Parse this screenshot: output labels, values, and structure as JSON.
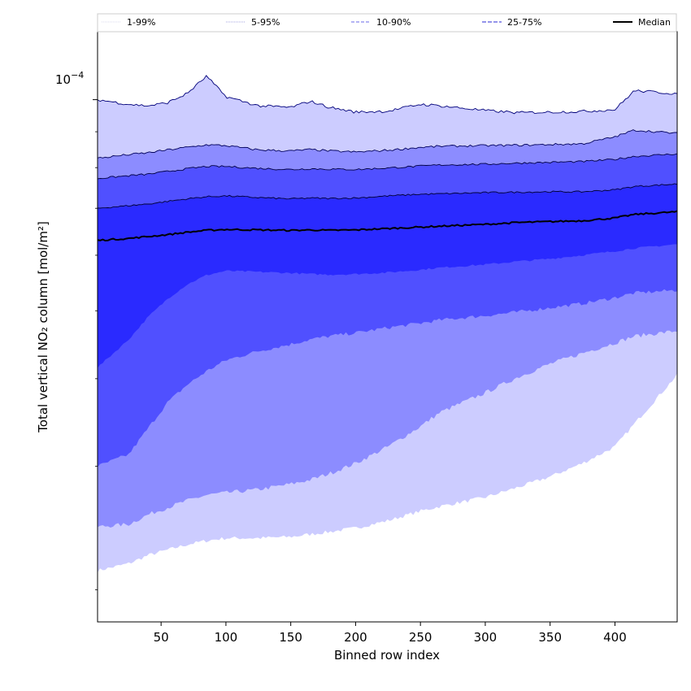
{
  "chart_data": {
    "type": "area",
    "xlabel": "Binned row index",
    "ylabel": "Total vertical NO₂ column [mol/m²]",
    "xlim": [
      1,
      448
    ],
    "y_scale": "log",
    "ylim": [
      1.8e-05,
      0.000125
    ],
    "x_ticks": [
      50,
      100,
      150,
      200,
      250,
      300,
      350,
      400
    ],
    "y_major_tick": {
      "value": 0.0001,
      "label_base": "10",
      "label_exp": "−4"
    },
    "y_minor_ticks": [
      2e-05,
      3e-05,
      4e-05,
      5e-05,
      6e-05,
      7e-05,
      8e-05,
      9e-05
    ],
    "x": [
      1,
      25,
      40,
      55,
      70,
      85,
      100,
      125,
      150,
      165,
      180,
      200,
      225,
      250,
      265,
      300,
      325,
      350,
      375,
      400,
      415,
      448
    ],
    "series": [
      {
        "name": "1%",
        "band": "1-99%",
        "values": [
          2.13e-05,
          2.18e-05,
          2.24e-05,
          2.28e-05,
          2.32e-05,
          2.35e-05,
          2.37e-05,
          2.37e-05,
          2.38e-05,
          2.4e-05,
          2.42e-05,
          2.45e-05,
          2.51e-05,
          2.59e-05,
          2.63e-05,
          2.71e-05,
          2.8e-05,
          2.9e-05,
          3.03e-05,
          3.2e-05,
          3.45e-05,
          4.05e-05
        ]
      },
      {
        "name": "5%",
        "band": "5-95%",
        "values": [
          2.46e-05,
          2.48e-05,
          2.56e-05,
          2.62e-05,
          2.68e-05,
          2.73e-05,
          2.75e-05,
          2.78e-05,
          2.83e-05,
          2.87e-05,
          2.93e-05,
          3.03e-05,
          3.2e-05,
          3.42e-05,
          3.58e-05,
          3.82e-05,
          4.02e-05,
          4.2e-05,
          4.35e-05,
          4.5e-05,
          4.6e-05,
          4.68e-05
        ]
      },
      {
        "name": "10%",
        "band": "10-90%",
        "values": [
          3e-05,
          3.12e-05,
          3.4e-05,
          3.7e-05,
          3.92e-05,
          4.1e-05,
          4.25e-05,
          4.38e-05,
          4.48e-05,
          4.55e-05,
          4.6e-05,
          4.65e-05,
          4.73e-05,
          4.8e-05,
          4.85e-05,
          4.92e-05,
          4.98e-05,
          5.05e-05,
          5.12e-05,
          5.22e-05,
          5.3e-05,
          5.35e-05
        ]
      },
      {
        "name": "25%",
        "band": "25-75%",
        "values": [
          4.15e-05,
          4.55e-05,
          4.9e-05,
          5.2e-05,
          5.45e-05,
          5.62e-05,
          5.7e-05,
          5.68e-05,
          5.66e-05,
          5.64e-05,
          5.63e-05,
          5.64e-05,
          5.67e-05,
          5.72e-05,
          5.76e-05,
          5.82e-05,
          5.88e-05,
          5.93e-05,
          6e-05,
          6.08e-05,
          6.14e-05,
          6.22e-05
        ]
      },
      {
        "name": "Median",
        "band": "Median",
        "values": [
          6.3e-05,
          6.34e-05,
          6.38e-05,
          6.42e-05,
          6.47e-05,
          6.51e-05,
          6.53e-05,
          6.52e-05,
          6.51e-05,
          6.52e-05,
          6.51e-05,
          6.52e-05,
          6.55e-05,
          6.58e-05,
          6.6e-05,
          6.64e-05,
          6.68e-05,
          6.7e-05,
          6.72e-05,
          6.78e-05,
          6.86e-05,
          6.92e-05
        ]
      },
      {
        "name": "75%",
        "band": "25-75%",
        "values": [
          7e-05,
          7.06e-05,
          7.1e-05,
          7.16e-05,
          7.22e-05,
          7.27e-05,
          7.29e-05,
          7.25e-05,
          7.22e-05,
          7.24e-05,
          7.23e-05,
          7.24e-05,
          7.29e-05,
          7.33e-05,
          7.34e-05,
          7.37e-05,
          7.38e-05,
          7.39e-05,
          7.39e-05,
          7.44e-05,
          7.52e-05,
          7.58e-05
        ]
      },
      {
        "name": "90%",
        "band": "10-90%",
        "values": [
          7.72e-05,
          7.79e-05,
          7.83e-05,
          7.9e-05,
          7.97e-05,
          8.03e-05,
          8.03e-05,
          7.98e-05,
          7.95e-05,
          7.97e-05,
          7.96e-05,
          7.95e-05,
          7.99e-05,
          8.04e-05,
          8.07e-05,
          8.09e-05,
          8.12e-05,
          8.14e-05,
          8.16e-05,
          8.22e-05,
          8.3e-05,
          8.37e-05
        ]
      },
      {
        "name": "95%",
        "band": "5-95%",
        "values": [
          8.25e-05,
          8.35e-05,
          8.4e-05,
          8.48e-05,
          8.55e-05,
          8.62e-05,
          8.6e-05,
          8.48e-05,
          8.45e-05,
          8.49e-05,
          8.45e-05,
          8.42e-05,
          8.47e-05,
          8.55e-05,
          8.58e-05,
          8.6e-05,
          8.61e-05,
          8.63e-05,
          8.65e-05,
          8.85e-05,
          9.05e-05,
          8.95e-05
        ]
      },
      {
        "name": "99%",
        "band": "1-99%",
        "values": [
          0.0001,
          9.85e-05,
          9.8e-05,
          9.9e-05,
          0.000102,
          0.000108,
          0.000101,
          9.8e-05,
          9.75e-05,
          9.95e-05,
          9.75e-05,
          9.6e-05,
          9.63e-05,
          9.85e-05,
          9.8e-05,
          9.65e-05,
          9.58e-05,
          9.6e-05,
          9.62e-05,
          9.68e-05,
          0.000103,
          0.000102
        ]
      }
    ],
    "bands": [
      {
        "label": "1-99%",
        "lower": "1%",
        "upper": "99%",
        "fill": "#ccccff",
        "edge": "#00007a",
        "dash": "1,2"
      },
      {
        "label": "5-95%",
        "lower": "5%",
        "upper": "95%",
        "fill": "#8c8cff",
        "edge": "#00005a",
        "dash": "2,2"
      },
      {
        "label": "10-90%",
        "lower": "10%",
        "upper": "90%",
        "fill": "#5050ff",
        "edge": "#000040",
        "dash": "4,2"
      },
      {
        "label": "25-75%",
        "lower": "25%",
        "upper": "75%",
        "fill": "#2a2aff",
        "edge": "#000030",
        "dash": "5,2"
      }
    ],
    "median_color": "#000000",
    "legend": {
      "placement": "top, above plot",
      "entries": [
        {
          "label": "1-99%",
          "color": "#e0e0f0",
          "dash": "1,1"
        },
        {
          "label": "5-95%",
          "color": "#b8b8e8",
          "dash": "1,1"
        },
        {
          "label": "10-90%",
          "color": "#8888ee",
          "dash": "4,2"
        },
        {
          "label": "25-75%",
          "color": "#5555dd",
          "dash": "5,2"
        },
        {
          "label": "Median",
          "color": "#000000",
          "dash": ""
        }
      ]
    }
  }
}
